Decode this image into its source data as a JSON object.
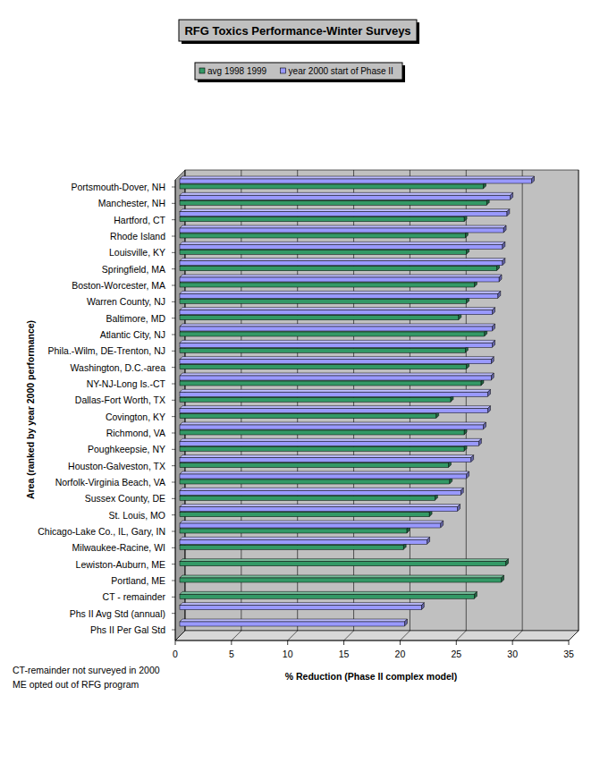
{
  "chart_data": {
    "type": "bar",
    "orientation": "horizontal",
    "title": "RFG Toxics Performance-Winter Surveys",
    "xlabel": "% Reduction (Phase II complex model)",
    "ylabel": "Area (ranked by year 2000 performance)",
    "annotations": [
      "CT-remainder not surveyed in 2000",
      "ME opted out of RFG program"
    ],
    "categories": [
      "Portsmouth-Dover, NH",
      "Manchester, NH",
      "Hartford, CT",
      "Rhode Island",
      "Louisville, KY",
      "Springfield, MA",
      "Boston-Worcester, MA",
      "Warren County, NJ",
      "Baltimore, MD",
      "Atlantic City, NJ",
      "Phila.-Wilm, DE-Trenton, NJ",
      "Washington, D.C.-area",
      "NY-NJ-Long Is.-CT",
      "Dallas-Fort Worth, TX",
      "Covington, KY",
      "Richmond, VA",
      "Poughkeepsie, NY",
      "Houston-Galveston, TX",
      "Norfolk-Virginia Beach, VA",
      "Sussex County, DE",
      "St. Louis, MO",
      "Chicago-Lake Co., IL, Gary, IN",
      "Milwaukee-Racine, WI",
      "Lewiston-Auburn, ME",
      "Portland, ME",
      "CT - remainder",
      "Phs II Avg Std (annual)",
      "Phs II Per Gal Std"
    ],
    "series": [
      {
        "name": "avg 1998 1999",
        "color": "#339966",
        "values": [
          27.0,
          27.3,
          25.3,
          25.4,
          25.5,
          28.2,
          26.2,
          25.5,
          24.8,
          27.1,
          25.4,
          25.5,
          26.8,
          24.1,
          22.8,
          25.3,
          25.3,
          23.9,
          24.0,
          22.7,
          22.2,
          20.2,
          19.9,
          29.0,
          28.6,
          26.2,
          null,
          null
        ]
      },
      {
        "name": "year 2000 start of Phase II",
        "color": "#9999ff",
        "values": [
          31.3,
          29.4,
          29.1,
          28.8,
          28.7,
          28.7,
          28.4,
          28.3,
          27.8,
          27.8,
          27.8,
          27.7,
          27.7,
          27.4,
          27.4,
          27.0,
          26.6,
          25.9,
          25.5,
          25.0,
          24.7,
          23.2,
          22.0,
          null,
          null,
          null,
          21.5,
          20.0
        ]
      }
    ],
    "xlim": [
      0,
      35
    ],
    "xticks": [
      0,
      5,
      10,
      15,
      20,
      25,
      30,
      35
    ],
    "grid": true,
    "legend": "top"
  }
}
